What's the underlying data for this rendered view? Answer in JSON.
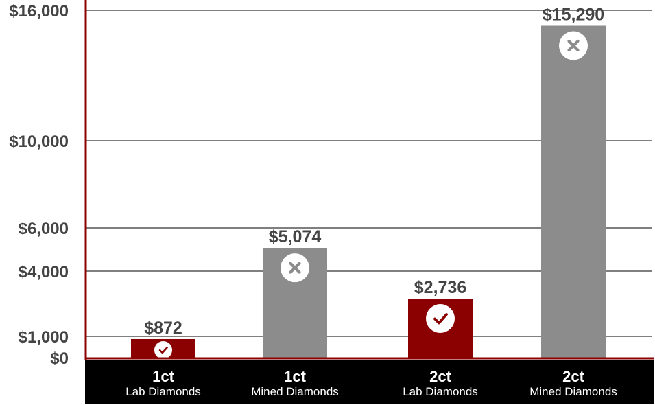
{
  "chart_data": {
    "type": "bar",
    "y_ticks": [
      {
        "value": 0,
        "label": "$0"
      },
      {
        "value": 1000,
        "label": "$1,000"
      },
      {
        "value": 4000,
        "label": "$4,000"
      },
      {
        "value": 6000,
        "label": "$6,000"
      },
      {
        "value": 10000,
        "label": "$10,000"
      },
      {
        "value": 16000,
        "label": "$16,000"
      }
    ],
    "ylim": [
      0,
      16500
    ],
    "grid": true,
    "categories": [
      {
        "main": "1ct",
        "sub": "Lab Diamonds"
      },
      {
        "main": "1ct",
        "sub": "Mined Diamonds"
      },
      {
        "main": "2ct",
        "sub": "Lab Diamonds"
      },
      {
        "main": "2ct",
        "sub": "Mined Diamonds"
      }
    ],
    "values": [
      872,
      5074,
      2736,
      15290
    ],
    "value_labels": [
      "$872",
      "$5,074",
      "$2,736",
      "$15,290"
    ],
    "bar_colors": [
      "#8b0000",
      "#8c8c8c",
      "#8b0000",
      "#8c8c8c"
    ],
    "badges": [
      "check-icon",
      "x-icon",
      "check-icon",
      "x-icon"
    ]
  },
  "colors": {
    "lab": "#8b0000",
    "mined": "#8c8c8c",
    "axis": "#8b0000",
    "grid": "#333333",
    "category_band": "#000000",
    "text": "#444444"
  }
}
